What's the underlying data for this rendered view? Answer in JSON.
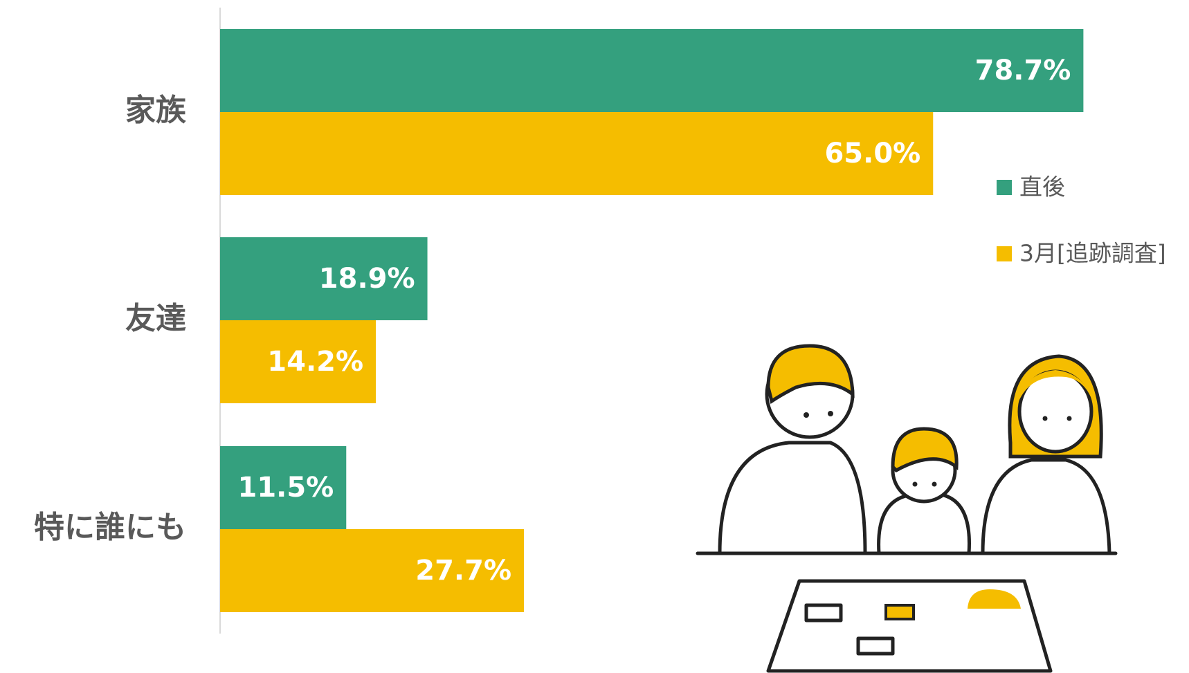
{
  "chart_data": {
    "type": "hbar",
    "categories": [
      "家族",
      "友達",
      "特に誰にも"
    ],
    "series": [
      {
        "name": "直後",
        "color": "#34a07e",
        "values": [
          78.7,
          18.9,
          11.5
        ],
        "value_labels": [
          "78.7%",
          "18.9%",
          "11.5%"
        ]
      },
      {
        "name": "3月[追跡調査]",
        "color": "#f5bd00",
        "values": [
          65.0,
          14.2,
          27.7
        ],
        "value_labels": [
          "65.0%",
          "14.2%",
          "27.7%"
        ]
      }
    ],
    "xlim": [
      0,
      80
    ],
    "legend": "right"
  }
}
